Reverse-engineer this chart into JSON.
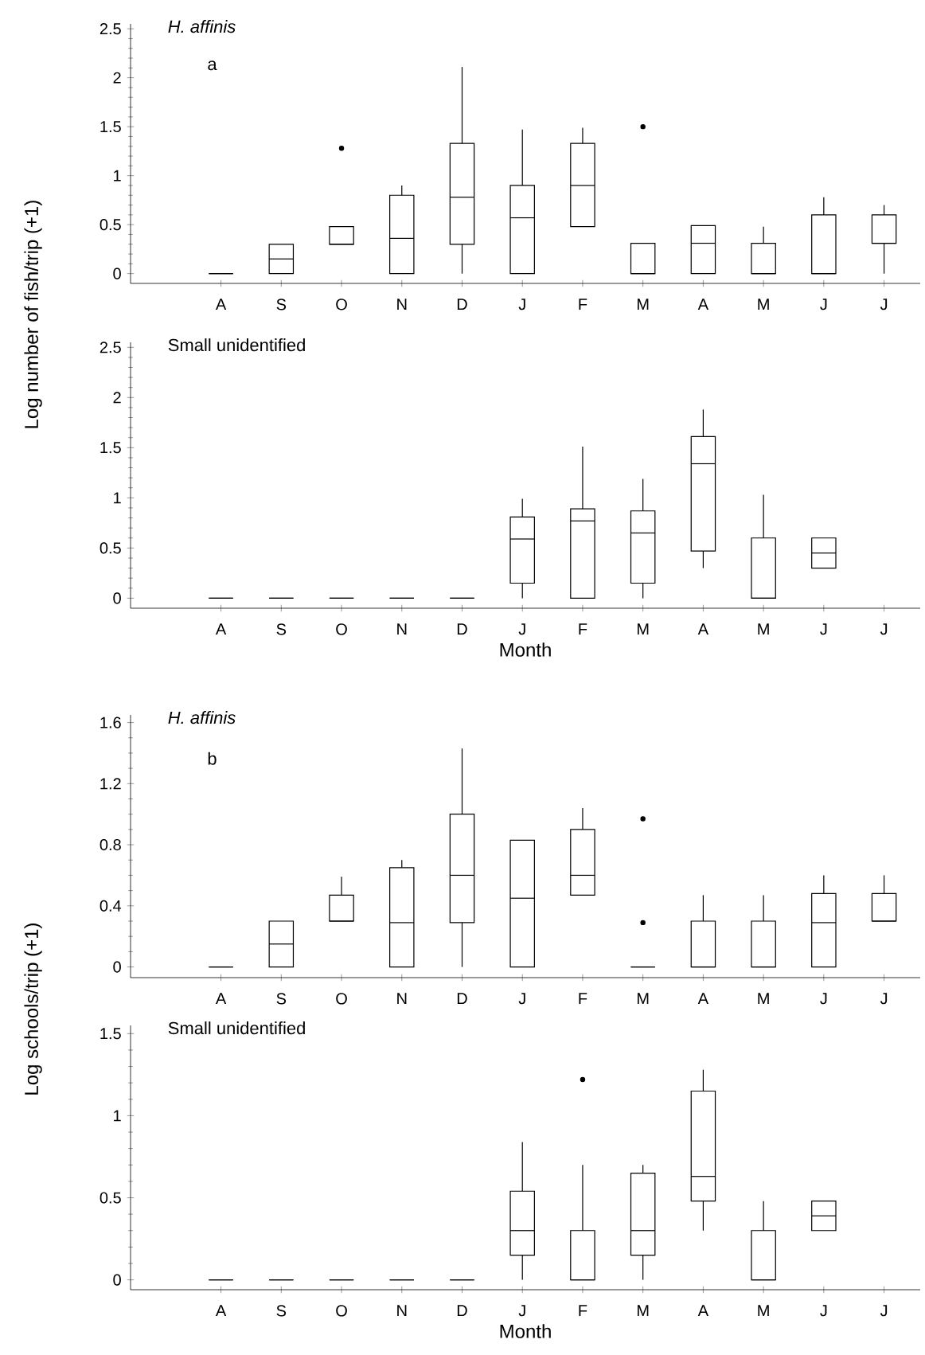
{
  "chart_data": [
    {
      "type": "box",
      "title": "H. affinis",
      "annotations": [
        "a"
      ],
      "ylabel": "Log number of fish/trip (+1)",
      "categories": [
        "A",
        "S",
        "O",
        "N",
        "D",
        "J",
        "F",
        "M",
        "A",
        "M",
        "J",
        "J"
      ],
      "ylim": [
        -0.1,
        2.55
      ],
      "yticks": [
        0,
        0.5,
        1,
        1.5,
        2,
        2.5
      ],
      "boxes": [
        {
          "low": 0,
          "q1": 0,
          "median": 0,
          "q3": 0,
          "high": 0
        },
        {
          "low": 0,
          "q1": 0,
          "median": 0.15,
          "q3": 0.3,
          "high": 0.3
        },
        {
          "low": 0.3,
          "q1": 0.3,
          "median": 0.3,
          "q3": 0.48,
          "high": 0.48,
          "outliers": [
            1.28
          ]
        },
        {
          "low": 0,
          "q1": 0,
          "median": 0.36,
          "q3": 0.8,
          "high": 0.9
        },
        {
          "low": 0,
          "q1": 0.3,
          "median": 0.78,
          "q3": 1.33,
          "high": 2.11
        },
        {
          "low": 0,
          "q1": 0,
          "median": 0.57,
          "q3": 0.9,
          "high": 1.47
        },
        {
          "low": 0.48,
          "q1": 0.48,
          "median": 0.9,
          "q3": 1.33,
          "high": 1.49
        },
        {
          "low": 0,
          "q1": 0,
          "median": 0,
          "q3": 0.31,
          "high": 0.31,
          "outliers": [
            1.5
          ]
        },
        {
          "low": 0,
          "q1": 0,
          "median": 0.31,
          "q3": 0.49,
          "high": 0.49
        },
        {
          "low": 0,
          "q1": 0,
          "median": 0,
          "q3": 0.31,
          "high": 0.48
        },
        {
          "low": 0,
          "q1": 0,
          "median": 0,
          "q3": 0.6,
          "high": 0.78
        },
        {
          "low": 0,
          "q1": 0.31,
          "median": 0.31,
          "q3": 0.6,
          "high": 0.7
        }
      ]
    },
    {
      "type": "box",
      "title": "Small unidentified",
      "xlabel": "Month",
      "categories": [
        "A",
        "S",
        "O",
        "N",
        "D",
        "J",
        "F",
        "M",
        "A",
        "M",
        "J",
        "J"
      ],
      "ylim": [
        -0.1,
        2.55
      ],
      "yticks": [
        0,
        0.5,
        1,
        1.5,
        2,
        2.5
      ],
      "boxes": [
        {
          "low": 0,
          "q1": 0,
          "median": 0,
          "q3": 0,
          "high": 0
        },
        {
          "low": 0,
          "q1": 0,
          "median": 0,
          "q3": 0,
          "high": 0
        },
        {
          "low": 0,
          "q1": 0,
          "median": 0,
          "q3": 0,
          "high": 0
        },
        {
          "low": 0,
          "q1": 0,
          "median": 0,
          "q3": 0,
          "high": 0
        },
        {
          "low": 0,
          "q1": 0,
          "median": 0,
          "q3": 0,
          "high": 0
        },
        {
          "low": 0,
          "q1": 0.15,
          "median": 0.59,
          "q3": 0.81,
          "high": 0.99
        },
        {
          "low": 0,
          "q1": 0,
          "median": 0.77,
          "q3": 0.89,
          "high": 1.51
        },
        {
          "low": 0,
          "q1": 0.15,
          "median": 0.65,
          "q3": 0.87,
          "high": 1.19
        },
        {
          "low": 0.3,
          "q1": 0.47,
          "median": 1.34,
          "q3": 1.61,
          "high": 1.88
        },
        {
          "low": 0,
          "q1": 0,
          "median": 0,
          "q3": 0.6,
          "high": 1.03
        },
        {
          "low": 0.3,
          "q1": 0.3,
          "median": 0.45,
          "q3": 0.6,
          "high": 0.6
        },
        null
      ]
    },
    {
      "type": "box",
      "title": "H. affinis",
      "annotations": [
        "b"
      ],
      "ylabel": "Log schools/trip (+1)",
      "categories": [
        "A",
        "S",
        "O",
        "N",
        "D",
        "J",
        "F",
        "M",
        "A",
        "M",
        "J",
        "J"
      ],
      "ylim": [
        -0.07,
        1.65
      ],
      "yticks": [
        0,
        0.4,
        0.8,
        1.2,
        1.6
      ],
      "boxes": [
        {
          "low": 0,
          "q1": 0,
          "median": 0,
          "q3": 0,
          "high": 0
        },
        {
          "low": 0,
          "q1": 0,
          "median": 0.15,
          "q3": 0.3,
          "high": 0.3
        },
        {
          "low": 0.3,
          "q1": 0.3,
          "median": 0.3,
          "q3": 0.47,
          "high": 0.59
        },
        {
          "low": 0,
          "q1": 0,
          "median": 0.29,
          "q3": 0.65,
          "high": 0.7
        },
        {
          "low": 0,
          "q1": 0.29,
          "median": 0.6,
          "q3": 1.0,
          "high": 1.43
        },
        {
          "low": 0,
          "q1": 0,
          "median": 0.45,
          "q3": 0.83,
          "high": 0.83
        },
        {
          "low": 0.47,
          "q1": 0.47,
          "median": 0.6,
          "q3": 0.9,
          "high": 1.04
        },
        {
          "low": 0,
          "q1": 0,
          "median": 0,
          "q3": 0,
          "high": 0,
          "outliers": [
            0.97,
            0.29
          ]
        },
        {
          "low": 0,
          "q1": 0,
          "median": 0,
          "q3": 0.3,
          "high": 0.47
        },
        {
          "low": 0,
          "q1": 0,
          "median": 0,
          "q3": 0.3,
          "high": 0.47
        },
        {
          "low": 0,
          "q1": 0,
          "median": 0.29,
          "q3": 0.48,
          "high": 0.6
        },
        {
          "low": 0.3,
          "q1": 0.3,
          "median": 0.3,
          "q3": 0.48,
          "high": 0.6
        }
      ]
    },
    {
      "type": "box",
      "title": "Small unidentified",
      "xlabel": "Month",
      "categories": [
        "A",
        "S",
        "O",
        "N",
        "D",
        "J",
        "F",
        "M",
        "A",
        "M",
        "J",
        "J"
      ],
      "ylim": [
        -0.06,
        1.55
      ],
      "yticks": [
        0,
        0.5,
        1,
        1.5
      ],
      "boxes": [
        {
          "low": 0,
          "q1": 0,
          "median": 0,
          "q3": 0,
          "high": 0
        },
        {
          "low": 0,
          "q1": 0,
          "median": 0,
          "q3": 0,
          "high": 0
        },
        {
          "low": 0,
          "q1": 0,
          "median": 0,
          "q3": 0,
          "high": 0
        },
        {
          "low": 0,
          "q1": 0,
          "median": 0,
          "q3": 0,
          "high": 0
        },
        {
          "low": 0,
          "q1": 0,
          "median": 0,
          "q3": 0,
          "high": 0
        },
        {
          "low": 0,
          "q1": 0.15,
          "median": 0.3,
          "q3": 0.54,
          "high": 0.84
        },
        {
          "low": 0,
          "q1": 0,
          "median": 0,
          "q3": 0.3,
          "high": 0.7,
          "outliers": [
            1.22
          ]
        },
        {
          "low": 0,
          "q1": 0.15,
          "median": 0.3,
          "q3": 0.65,
          "high": 0.7
        },
        {
          "low": 0.3,
          "q1": 0.48,
          "median": 0.63,
          "q3": 1.15,
          "high": 1.28
        },
        {
          "low": 0,
          "q1": 0,
          "median": 0,
          "q3": 0.3,
          "high": 0.48
        },
        {
          "low": 0.3,
          "q1": 0.3,
          "median": 0.39,
          "q3": 0.48,
          "high": 0.48
        },
        null
      ]
    }
  ]
}
